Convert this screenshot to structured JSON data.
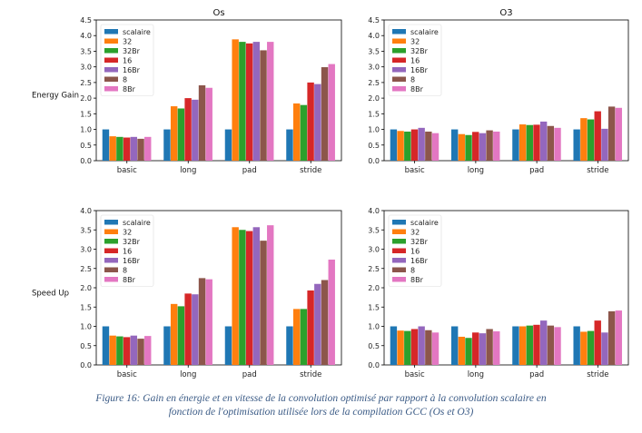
{
  "caption": {
    "line1": "Figure 16: Gain en énergie et en vitesse de la convolution optimisé par rapport à la convolution scalaire en",
    "line2": "fonction de l'optimisation utilisée lors de la compilation GCC (Os et O3)"
  },
  "series_colors": [
    "#1f77b4",
    "#ff7f0e",
    "#2ca02c",
    "#d62728",
    "#9467bd",
    "#8c564b",
    "#e377c2"
  ],
  "chart_data": [
    {
      "type": "bar",
      "title": "Os",
      "xlabel": "",
      "ylabel": "Energy Gain",
      "ylim": [
        0,
        4.5
      ],
      "yticks": [
        "0.0",
        "0.5",
        "1.0",
        "1.5",
        "2.0",
        "2.5",
        "3.0",
        "3.5",
        "4.0",
        "4.5"
      ],
      "grid": false,
      "legend": "top-left",
      "categories": [
        "basic",
        "long",
        "pad",
        "stride"
      ],
      "series": [
        {
          "name": "scalaire",
          "values": [
            1.0,
            1.0,
            1.0,
            1.0
          ]
        },
        {
          "name": "32",
          "values": [
            0.78,
            1.74,
            3.88,
            1.83
          ]
        },
        {
          "name": "32Br",
          "values": [
            0.76,
            1.67,
            3.8,
            1.78
          ]
        },
        {
          "name": "16",
          "values": [
            0.74,
            2.0,
            3.75,
            2.5
          ]
        },
        {
          "name": "16Br",
          "values": [
            0.76,
            1.95,
            3.8,
            2.45
          ]
        },
        {
          "name": "8",
          "values": [
            0.7,
            2.41,
            3.53,
            2.99
          ]
        },
        {
          "name": "8Br",
          "values": [
            0.76,
            2.33,
            3.8,
            3.09
          ]
        }
      ]
    },
    {
      "type": "bar",
      "title": "O3",
      "xlabel": "",
      "ylabel": "",
      "ylim": [
        0,
        4.5
      ],
      "yticks": [
        "0.0",
        "0.5",
        "1.0",
        "1.5",
        "2.0",
        "2.5",
        "3.0",
        "3.5",
        "4.0",
        "4.5"
      ],
      "grid": false,
      "legend": "top-left",
      "categories": [
        "basic",
        "long",
        "pad",
        "stride"
      ],
      "series": [
        {
          "name": "scalaire",
          "values": [
            1.0,
            1.0,
            1.0,
            1.0
          ]
        },
        {
          "name": "32",
          "values": [
            0.95,
            0.85,
            1.16,
            1.36
          ]
        },
        {
          "name": "32Br",
          "values": [
            0.93,
            0.82,
            1.14,
            1.32
          ]
        },
        {
          "name": "16",
          "values": [
            1.0,
            0.92,
            1.15,
            1.58
          ]
        },
        {
          "name": "16Br",
          "values": [
            1.05,
            0.88,
            1.25,
            1.02
          ]
        },
        {
          "name": "8",
          "values": [
            0.93,
            0.97,
            1.11,
            1.73
          ]
        },
        {
          "name": "8Br",
          "values": [
            0.88,
            0.93,
            1.05,
            1.69
          ]
        }
      ]
    },
    {
      "type": "bar",
      "title": "",
      "xlabel": "",
      "ylabel": "Speed Up",
      "ylim": [
        0,
        4.0
      ],
      "yticks": [
        "0.0",
        "0.5",
        "1.0",
        "1.5",
        "2.0",
        "2.5",
        "3.0",
        "3.5",
        "4.0"
      ],
      "grid": false,
      "legend": "top-left",
      "categories": [
        "basic",
        "long",
        "pad",
        "stride"
      ],
      "series": [
        {
          "name": "scalaire",
          "values": [
            1.0,
            1.0,
            1.0,
            1.0
          ]
        },
        {
          "name": "32",
          "values": [
            0.76,
            1.58,
            3.57,
            1.45
          ]
        },
        {
          "name": "32Br",
          "values": [
            0.74,
            1.52,
            3.5,
            1.45
          ]
        },
        {
          "name": "16",
          "values": [
            0.72,
            1.85,
            3.47,
            1.93
          ]
        },
        {
          "name": "16Br",
          "values": [
            0.76,
            1.83,
            3.57,
            2.1
          ]
        },
        {
          "name": "8",
          "values": [
            0.68,
            2.25,
            3.22,
            2.2
          ]
        },
        {
          "name": "8Br",
          "values": [
            0.75,
            2.22,
            3.62,
            2.73
          ]
        }
      ]
    },
    {
      "type": "bar",
      "title": "",
      "xlabel": "",
      "ylabel": "",
      "ylim": [
        0,
        4.0
      ],
      "yticks": [
        "0.0",
        "0.5",
        "1.0",
        "1.5",
        "2.0",
        "2.5",
        "3.0",
        "3.5",
        "4.0"
      ],
      "grid": false,
      "legend": "top-left",
      "categories": [
        "basic",
        "long",
        "pad",
        "stride"
      ],
      "series": [
        {
          "name": "scalaire",
          "values": [
            1.0,
            1.0,
            1.0,
            1.0
          ]
        },
        {
          "name": "32",
          "values": [
            0.89,
            0.73,
            1.0,
            0.86
          ]
        },
        {
          "name": "32Br",
          "values": [
            0.88,
            0.7,
            1.02,
            0.88
          ]
        },
        {
          "name": "16",
          "values": [
            0.93,
            0.84,
            1.04,
            1.15
          ]
        },
        {
          "name": "16Br",
          "values": [
            1.0,
            0.82,
            1.15,
            0.84
          ]
        },
        {
          "name": "8",
          "values": [
            0.9,
            0.93,
            1.02,
            1.39
          ]
        },
        {
          "name": "8Br",
          "values": [
            0.84,
            0.87,
            0.98,
            1.41
          ]
        }
      ]
    }
  ]
}
